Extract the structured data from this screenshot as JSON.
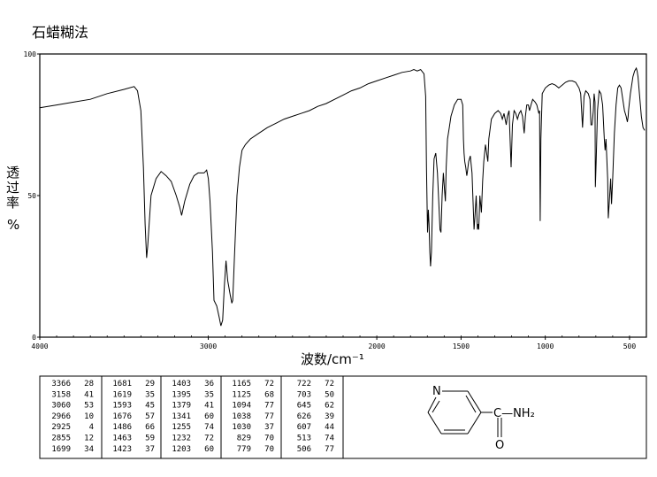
{
  "chart_data": {
    "type": "line",
    "title": "石蜡糊法",
    "xlabel": "波数/cm⁻¹",
    "ylabel": "透过率%",
    "xlim": [
      4000,
      400
    ],
    "ylim": [
      0,
      100
    ],
    "x_ticks": [
      {
        "value": 4000,
        "label": "4000"
      },
      {
        "value": 3000,
        "label": "3000"
      },
      {
        "value": 2000,
        "label": "2000"
      },
      {
        "value": 1500,
        "label": "1500"
      },
      {
        "value": 1000,
        "label": "1000"
      },
      {
        "value": 500,
        "label": "500"
      }
    ],
    "y_ticks": [
      {
        "value": 100,
        "label": "100"
      },
      {
        "value": 50,
        "label": "50"
      },
      {
        "value": 0,
        "label": "0"
      }
    ],
    "series": [
      {
        "color": "#000000",
        "points": [
          [
            4000,
            81
          ],
          [
            3900,
            82
          ],
          [
            3800,
            83
          ],
          [
            3700,
            84
          ],
          [
            3600,
            86
          ],
          [
            3500,
            87.5
          ],
          [
            3440,
            88.5
          ],
          [
            3420,
            87
          ],
          [
            3400,
            80
          ],
          [
            3385,
            60
          ],
          [
            3375,
            40
          ],
          [
            3366,
            28
          ],
          [
            3360,
            32
          ],
          [
            3340,
            50
          ],
          [
            3310,
            56
          ],
          [
            3280,
            58.5
          ],
          [
            3250,
            57
          ],
          [
            3220,
            55
          ],
          [
            3190,
            50
          ],
          [
            3170,
            46
          ],
          [
            3158,
            43
          ],
          [
            3140,
            48
          ],
          [
            3110,
            54
          ],
          [
            3085,
            57
          ],
          [
            3060,
            58
          ],
          [
            3045,
            58
          ],
          [
            3025,
            58
          ],
          [
            3010,
            59
          ],
          [
            3000,
            56
          ],
          [
            2990,
            48
          ],
          [
            2975,
            30
          ],
          [
            2966,
            13
          ],
          [
            2950,
            11
          ],
          [
            2935,
            7
          ],
          [
            2925,
            4
          ],
          [
            2915,
            6
          ],
          [
            2905,
            18
          ],
          [
            2895,
            27
          ],
          [
            2885,
            20
          ],
          [
            2870,
            15
          ],
          [
            2860,
            12
          ],
          [
            2855,
            13
          ],
          [
            2845,
            28
          ],
          [
            2830,
            50
          ],
          [
            2815,
            60
          ],
          [
            2800,
            66
          ],
          [
            2780,
            68
          ],
          [
            2750,
            70
          ],
          [
            2700,
            72
          ],
          [
            2650,
            74
          ],
          [
            2600,
            75.5
          ],
          [
            2550,
            77
          ],
          [
            2500,
            78
          ],
          [
            2450,
            79
          ],
          [
            2400,
            80
          ],
          [
            2350,
            81.5
          ],
          [
            2300,
            82.5
          ],
          [
            2250,
            84
          ],
          [
            2200,
            85.5
          ],
          [
            2150,
            87
          ],
          [
            2100,
            88
          ],
          [
            2050,
            89.5
          ],
          [
            2000,
            90.5
          ],
          [
            1950,
            91.5
          ],
          [
            1900,
            92.5
          ],
          [
            1850,
            93.5
          ],
          [
            1800,
            94
          ],
          [
            1780,
            94.5
          ],
          [
            1760,
            94
          ],
          [
            1740,
            94.5
          ],
          [
            1720,
            93
          ],
          [
            1710,
            85
          ],
          [
            1705,
            60
          ],
          [
            1699,
            37
          ],
          [
            1694,
            45
          ],
          [
            1690,
            40
          ],
          [
            1685,
            30
          ],
          [
            1681,
            25
          ],
          [
            1676,
            30
          ],
          [
            1668,
            50
          ],
          [
            1660,
            63
          ],
          [
            1650,
            65
          ],
          [
            1640,
            58
          ],
          [
            1630,
            45
          ],
          [
            1625,
            38
          ],
          [
            1619,
            37
          ],
          [
            1612,
            50
          ],
          [
            1605,
            58
          ],
          [
            1598,
            52
          ],
          [
            1593,
            48
          ],
          [
            1588,
            60
          ],
          [
            1580,
            70
          ],
          [
            1570,
            74
          ],
          [
            1560,
            78
          ],
          [
            1540,
            82
          ],
          [
            1520,
            84
          ],
          [
            1500,
            84
          ],
          [
            1490,
            82
          ],
          [
            1486,
            70
          ],
          [
            1482,
            65
          ],
          [
            1478,
            62
          ],
          [
            1472,
            60
          ],
          [
            1466,
            57
          ],
          [
            1463,
            58
          ],
          [
            1455,
            62
          ],
          [
            1445,
            64
          ],
          [
            1435,
            58
          ],
          [
            1423,
            38
          ],
          [
            1418,
            42
          ],
          [
            1410,
            50
          ],
          [
            1403,
            38
          ],
          [
            1398,
            40
          ],
          [
            1395,
            38
          ],
          [
            1388,
            50
          ],
          [
            1379,
            44
          ],
          [
            1372,
            55
          ],
          [
            1365,
            62
          ],
          [
            1355,
            68
          ],
          [
            1341,
            62
          ],
          [
            1335,
            70
          ],
          [
            1320,
            77
          ],
          [
            1300,
            79
          ],
          [
            1280,
            80
          ],
          [
            1265,
            79
          ],
          [
            1255,
            77
          ],
          [
            1245,
            79
          ],
          [
            1232,
            75
          ],
          [
            1225,
            78
          ],
          [
            1215,
            80
          ],
          [
            1203,
            60
          ],
          [
            1195,
            75
          ],
          [
            1185,
            80
          ],
          [
            1175,
            79
          ],
          [
            1165,
            77
          ],
          [
            1155,
            79
          ],
          [
            1145,
            80
          ],
          [
            1135,
            78
          ],
          [
            1125,
            72
          ],
          [
            1118,
            78
          ],
          [
            1110,
            82
          ],
          [
            1100,
            82
          ],
          [
            1094,
            80
          ],
          [
            1085,
            82
          ],
          [
            1075,
            84
          ],
          [
            1060,
            83
          ],
          [
            1050,
            82
          ],
          [
            1038,
            79
          ],
          [
            1034,
            80
          ],
          [
            1030,
            41
          ],
          [
            1026,
            70
          ],
          [
            1018,
            86
          ],
          [
            1000,
            88
          ],
          [
            980,
            89
          ],
          [
            960,
            89.5
          ],
          [
            940,
            89
          ],
          [
            920,
            88
          ],
          [
            900,
            89
          ],
          [
            880,
            90
          ],
          [
            860,
            90.5
          ],
          [
            840,
            90.5
          ],
          [
            820,
            90
          ],
          [
            810,
            89
          ],
          [
            800,
            88
          ],
          [
            790,
            86
          ],
          [
            779,
            74
          ],
          [
            770,
            85
          ],
          [
            760,
            87
          ],
          [
            745,
            86
          ],
          [
            735,
            84
          ],
          [
            729,
            75
          ],
          [
            722,
            75
          ],
          [
            715,
            80
          ],
          [
            710,
            86
          ],
          [
            705,
            83
          ],
          [
            703,
            53
          ],
          [
            698,
            62
          ],
          [
            690,
            80
          ],
          [
            680,
            87
          ],
          [
            670,
            86
          ],
          [
            660,
            82
          ],
          [
            650,
            70
          ],
          [
            645,
            66
          ],
          [
            640,
            70
          ],
          [
            630,
            56
          ],
          [
            626,
            42
          ],
          [
            620,
            48
          ],
          [
            612,
            56
          ],
          [
            607,
            47
          ],
          [
            600,
            56
          ],
          [
            590,
            72
          ],
          [
            580,
            82
          ],
          [
            570,
            88
          ],
          [
            560,
            89
          ],
          [
            550,
            88
          ],
          [
            540,
            84
          ],
          [
            530,
            80
          ],
          [
            520,
            78
          ],
          [
            513,
            76
          ],
          [
            508,
            78
          ],
          [
            506,
            80
          ],
          [
            495,
            86
          ],
          [
            480,
            92
          ],
          [
            470,
            94
          ],
          [
            460,
            95
          ],
          [
            455,
            94
          ],
          [
            450,
            92
          ],
          [
            440,
            85
          ],
          [
            430,
            78
          ],
          [
            420,
            74
          ],
          [
            410,
            73
          ]
        ]
      }
    ],
    "peak_table": [
      [
        [
          "3366",
          "28"
        ],
        [
          "3158",
          "41"
        ],
        [
          "3060",
          "53"
        ],
        [
          "2966",
          "10"
        ],
        [
          "2925",
          "4"
        ],
        [
          "2855",
          "12"
        ],
        [
          "1699",
          "34"
        ]
      ],
      [
        [
          "1681",
          "29"
        ],
        [
          "1619",
          "35"
        ],
        [
          "1593",
          "45"
        ],
        [
          "1676",
          "57"
        ],
        [
          "1486",
          "66"
        ],
        [
          "1463",
          "59"
        ],
        [
          "1423",
          "37"
        ]
      ],
      [
        [
          "1403",
          "36"
        ],
        [
          "1395",
          "35"
        ],
        [
          "1379",
          "41"
        ],
        [
          "1341",
          "60"
        ],
        [
          "1255",
          "74"
        ],
        [
          "1232",
          "72"
        ],
        [
          "1203",
          "60"
        ]
      ],
      [
        [
          "1165",
          "72"
        ],
        [
          "1125",
          "68"
        ],
        [
          "1094",
          "77"
        ],
        [
          "1038",
          "77"
        ],
        [
          "1030",
          "37"
        ],
        [
          "829",
          "70"
        ],
        [
          "779",
          "70"
        ]
      ],
      [
        [
          "722",
          "72"
        ],
        [
          "703",
          "50"
        ],
        [
          "645",
          "62"
        ],
        [
          "626",
          "39"
        ],
        [
          "607",
          "44"
        ],
        [
          "513",
          "74"
        ],
        [
          "506",
          "77"
        ]
      ]
    ],
    "structure_labels": {
      "ring_n": "N",
      "amide": "C—NH₂",
      "carbonyl_o": "O"
    }
  }
}
